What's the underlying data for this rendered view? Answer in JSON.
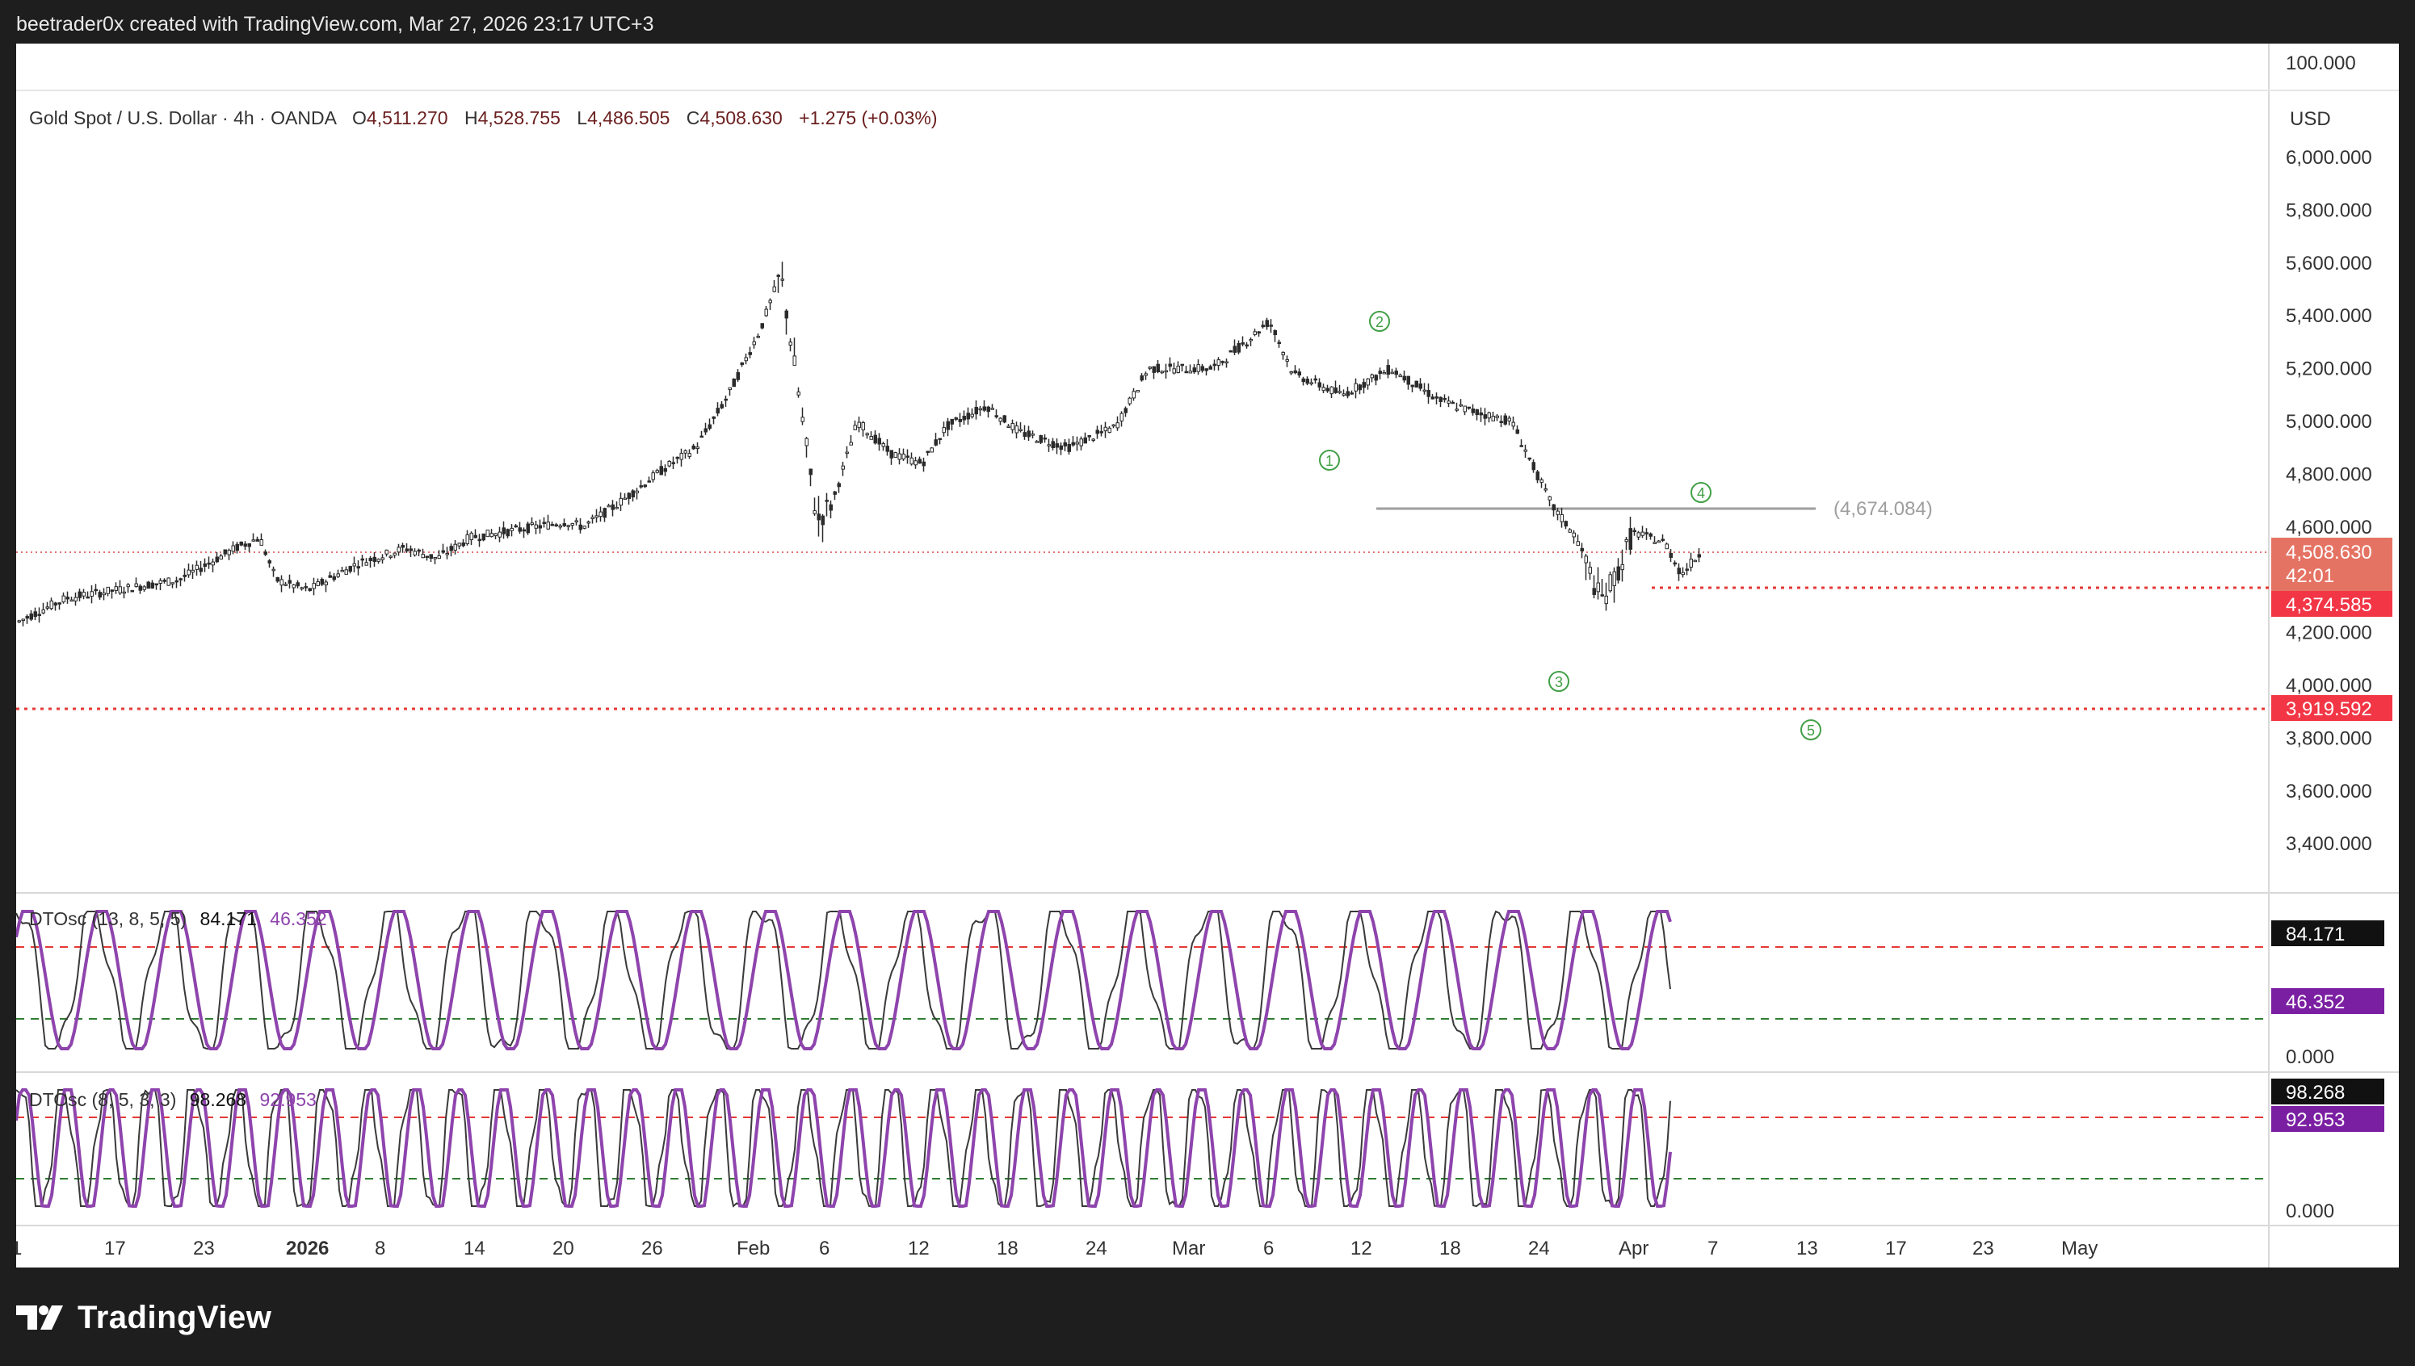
{
  "header": {
    "attribution": "beetrader0x created with TradingView.com, Mar 27, 2026 23:17 UTC+3"
  },
  "legend": {
    "symbol": "Gold Spot / U.S. Dollar · 4h · OANDA",
    "open_label": "O",
    "open": "4,511.270",
    "high_label": "H",
    "high": "4,528.755",
    "low_label": "L",
    "low": "4,486.505",
    "close_label": "C",
    "close": "4,508.630",
    "change": "+1.275 (+0.03%)"
  },
  "price_axis": {
    "currency": "USD",
    "top_value": "100.000",
    "ticks": [
      "6,000.000",
      "5,800.000",
      "5,600.000",
      "5,400.000",
      "5,200.000",
      "5,000.000",
      "4,800.000",
      "4,600.000",
      "4,200.000",
      "4,000.000",
      "3,800.000",
      "3,600.000",
      "3,400.000"
    ],
    "last_price": "4,508.630",
    "countdown": "42:01",
    "level_red_1": "4,374.585",
    "level_red_2": "3,919.592",
    "resistance_label": "(4,674.084)"
  },
  "waves": [
    "1",
    "2",
    "3",
    "4",
    "5"
  ],
  "indicator1": {
    "label": "DTOsc (13, 8, 5, 5)",
    "value1": "84.171",
    "value2": "46.352",
    "axis_zero": "0.000"
  },
  "indicator2": {
    "label": "DTOsc (8, 5, 3, 3)",
    "value1": "98.268",
    "value2": "92.953",
    "axis_zero": "0.000"
  },
  "time_axis": [
    "1",
    "17",
    "23",
    "2026",
    "8",
    "14",
    "20",
    "26",
    "Feb",
    "6",
    "12",
    "18",
    "24",
    "Mar",
    "6",
    "12",
    "18",
    "24",
    "Apr",
    "7",
    "13",
    "17",
    "23",
    "May"
  ],
  "branding": {
    "name": "TradingView"
  },
  "colors": {
    "background": "#1e1e1e",
    "candle": "#2b2b2b",
    "red_level": "#e53935",
    "wave_green": "#43a047",
    "osc_purple": "#8e44ad",
    "osc_line": "#3a3a3a"
  }
}
